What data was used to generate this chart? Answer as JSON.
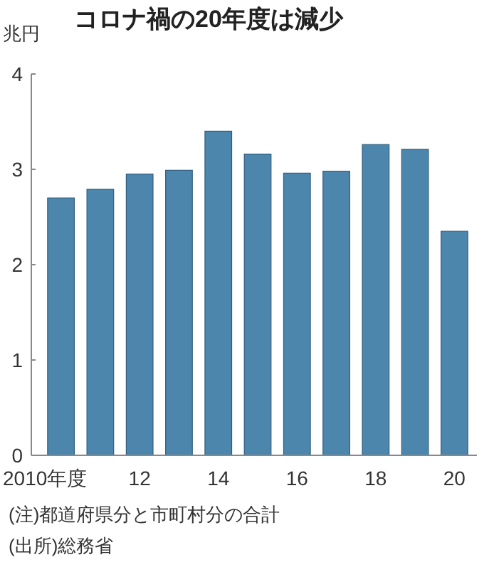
{
  "chart_data": {
    "type": "bar",
    "title": "コロナ禍の20年度は減少",
    "ylabel": "兆円",
    "categories": [
      "2010年度",
      null,
      "12",
      null,
      "14",
      null,
      "16",
      null,
      "18",
      null,
      "20"
    ],
    "values": [
      2.7,
      2.79,
      2.95,
      2.99,
      3.4,
      3.16,
      2.96,
      2.98,
      3.26,
      3.21,
      2.35
    ],
    "color": "#4d86ad",
    "ylim": [
      0,
      4
    ],
    "yticks": [
      0,
      1,
      2,
      3,
      4
    ],
    "annotations": [
      "(注)都道府県分と市町村分の合計",
      "(出所)総務省"
    ]
  }
}
